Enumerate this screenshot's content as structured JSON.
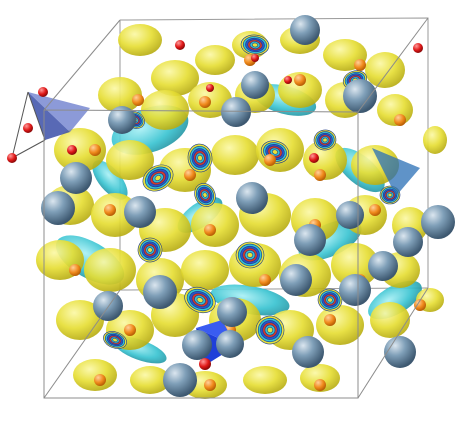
{
  "scene": {
    "subject": "crystal-structure-visualization",
    "colors": {
      "background": "#ffffff",
      "isosurface_yellow": "#e8e23a",
      "isosurface_cyan": "#35c2d0",
      "slice_ring_blue": "#2b56c8",
      "slice_ring_red": "#d23a2a",
      "steel_atom": "#6d8fa8",
      "orange_atom": "#f08a1c",
      "red_atom": "#e01818",
      "polyhedron_blue": "#1f3fd9",
      "unit_cell_edge": "#8c8c8c"
    }
  }
}
